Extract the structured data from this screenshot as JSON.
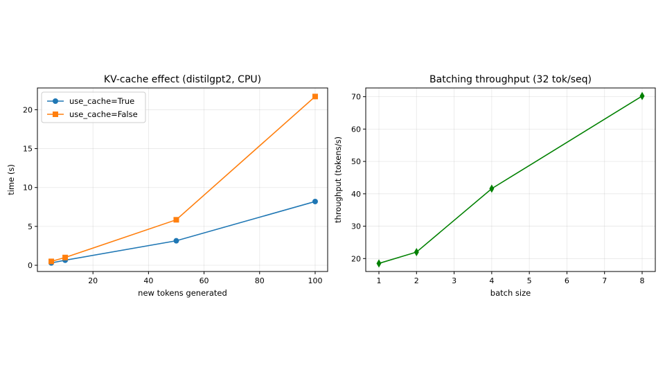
{
  "chart_data": [
    {
      "type": "line",
      "title": "KV-cache effect (distilgpt2, CPU)",
      "xlabel": "new tokens generated",
      "ylabel": "time (s)",
      "xlim": [
        0,
        104.5
      ],
      "ylim": [
        -0.8,
        22.8
      ],
      "xticks": [
        20,
        40,
        60,
        80,
        100
      ],
      "yticks": [
        0,
        5,
        10,
        15,
        20
      ],
      "grid": true,
      "legend": "upper left",
      "series": [
        {
          "name": "use_cache=True",
          "x": [
            5,
            10,
            50,
            100
          ],
          "y": [
            0.3,
            0.65,
            3.15,
            8.2
          ],
          "color": "#1f77b4",
          "marker": "circle"
        },
        {
          "name": "use_cache=False",
          "x": [
            5,
            10,
            50,
            100
          ],
          "y": [
            0.5,
            1.0,
            5.85,
            21.7
          ],
          "color": "#ff7f0e",
          "marker": "square"
        }
      ]
    },
    {
      "type": "line",
      "title": "Batching throughput (32 tok/seq)",
      "xlabel": "batch size",
      "ylabel": "throughput (tokens/s)",
      "xlim": [
        0.65,
        8.35
      ],
      "ylim": [
        16.0,
        72.7
      ],
      "xticks": [
        1,
        2,
        3,
        4,
        5,
        6,
        7,
        8
      ],
      "yticks": [
        20,
        30,
        40,
        50,
        60,
        70
      ],
      "grid": true,
      "series": [
        {
          "x": [
            1,
            2,
            4,
            8
          ],
          "y": [
            18.5,
            22.0,
            41.6,
            70.2
          ],
          "color": "#008000",
          "marker": "thin_diamond"
        }
      ]
    }
  ]
}
